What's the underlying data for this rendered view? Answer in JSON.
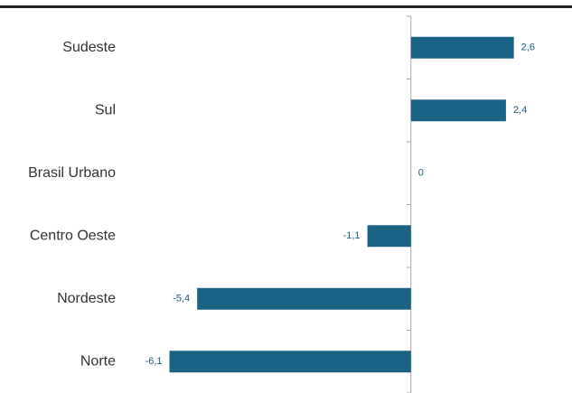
{
  "chart_data": {
    "type": "hbar",
    "categories": [
      "Sudeste",
      "Sul",
      "Brasil Urbano",
      "Centro Oeste",
      "Nordeste",
      "Norte"
    ],
    "values": [
      2.6,
      2.4,
      0,
      -1.1,
      -5.4,
      -6.1
    ],
    "value_labels": [
      "2,6",
      "2,4",
      "0",
      "-1,1",
      "-5,4",
      "-6,1"
    ],
    "color": "#1b6385",
    "xlim": [
      -6.5,
      4
    ]
  }
}
